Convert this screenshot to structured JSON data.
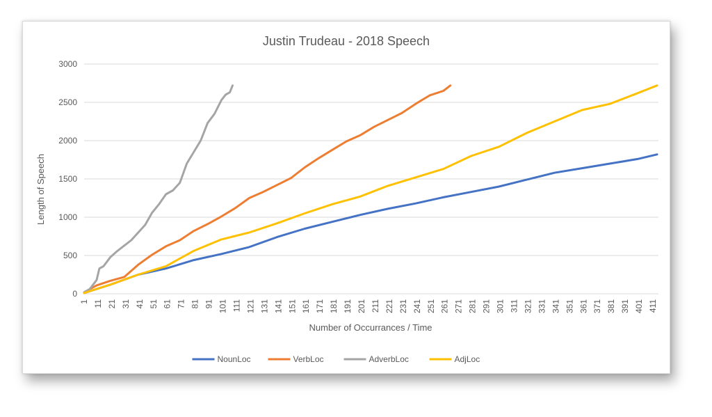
{
  "chart_data": {
    "type": "line",
    "title": "Justin Trudeau - 2018 Speech",
    "xlabel": "Number of Occurrances / Time",
    "ylabel": "Length of Speech",
    "xlim": [
      1,
      415
    ],
    "ylim": [
      0,
      3000
    ],
    "yticks": [
      0,
      500,
      1000,
      1500,
      2000,
      2500,
      3000
    ],
    "xticks": [
      1,
      11,
      21,
      31,
      41,
      51,
      61,
      71,
      81,
      91,
      101,
      111,
      121,
      131,
      141,
      151,
      161,
      171,
      181,
      191,
      201,
      211,
      221,
      231,
      241,
      251,
      261,
      271,
      281,
      291,
      301,
      311,
      321,
      331,
      341,
      351,
      361,
      371,
      381,
      391,
      401,
      411
    ],
    "grid": "horizontal",
    "legend_position": "bottom",
    "series": [
      {
        "name": "NounLoc",
        "color": "#4472c4",
        "points": [
          [
            1,
            10
          ],
          [
            20,
            120
          ],
          [
            40,
            250
          ],
          [
            60,
            330
          ],
          [
            80,
            440
          ],
          [
            100,
            520
          ],
          [
            120,
            610
          ],
          [
            140,
            740
          ],
          [
            160,
            850
          ],
          [
            180,
            940
          ],
          [
            200,
            1030
          ],
          [
            220,
            1110
          ],
          [
            240,
            1180
          ],
          [
            260,
            1260
          ],
          [
            280,
            1330
          ],
          [
            300,
            1400
          ],
          [
            320,
            1490
          ],
          [
            340,
            1580
          ],
          [
            360,
            1640
          ],
          [
            380,
            1700
          ],
          [
            400,
            1760
          ],
          [
            414,
            1820
          ]
        ]
      },
      {
        "name": "VerbLoc",
        "color": "#ed7d31",
        "points": [
          [
            1,
            20
          ],
          [
            10,
            110
          ],
          [
            20,
            170
          ],
          [
            30,
            220
          ],
          [
            40,
            380
          ],
          [
            50,
            510
          ],
          [
            60,
            620
          ],
          [
            70,
            700
          ],
          [
            80,
            820
          ],
          [
            90,
            910
          ],
          [
            100,
            1010
          ],
          [
            110,
            1120
          ],
          [
            120,
            1250
          ],
          [
            130,
            1330
          ],
          [
            140,
            1420
          ],
          [
            150,
            1510
          ],
          [
            160,
            1650
          ],
          [
            170,
            1770
          ],
          [
            180,
            1880
          ],
          [
            190,
            1990
          ],
          [
            200,
            2070
          ],
          [
            210,
            2180
          ],
          [
            220,
            2270
          ],
          [
            230,
            2360
          ],
          [
            240,
            2480
          ],
          [
            250,
            2590
          ],
          [
            260,
            2650
          ],
          [
            265,
            2720
          ]
        ]
      },
      {
        "name": "AdverbLoc",
        "color": "#a5a5a5",
        "points": [
          [
            1,
            20
          ],
          [
            5,
            60
          ],
          [
            10,
            180
          ],
          [
            12,
            330
          ],
          [
            15,
            360
          ],
          [
            20,
            480
          ],
          [
            25,
            560
          ],
          [
            30,
            630
          ],
          [
            35,
            700
          ],
          [
            40,
            800
          ],
          [
            45,
            900
          ],
          [
            50,
            1060
          ],
          [
            55,
            1170
          ],
          [
            60,
            1300
          ],
          [
            65,
            1350
          ],
          [
            70,
            1450
          ],
          [
            75,
            1700
          ],
          [
            80,
            1850
          ],
          [
            85,
            2000
          ],
          [
            90,
            2230
          ],
          [
            95,
            2350
          ],
          [
            100,
            2530
          ],
          [
            103,
            2600
          ],
          [
            106,
            2630
          ],
          [
            108,
            2720
          ]
        ]
      },
      {
        "name": "AdjLoc",
        "color": "#ffc000",
        "points": [
          [
            1,
            10
          ],
          [
            20,
            120
          ],
          [
            40,
            250
          ],
          [
            60,
            360
          ],
          [
            80,
            560
          ],
          [
            100,
            710
          ],
          [
            120,
            800
          ],
          [
            140,
            920
          ],
          [
            160,
            1050
          ],
          [
            180,
            1170
          ],
          [
            200,
            1270
          ],
          [
            220,
            1410
          ],
          [
            240,
            1520
          ],
          [
            260,
            1630
          ],
          [
            280,
            1800
          ],
          [
            300,
            1920
          ],
          [
            320,
            2100
          ],
          [
            340,
            2250
          ],
          [
            360,
            2400
          ],
          [
            380,
            2480
          ],
          [
            400,
            2620
          ],
          [
            414,
            2720
          ]
        ]
      }
    ]
  }
}
